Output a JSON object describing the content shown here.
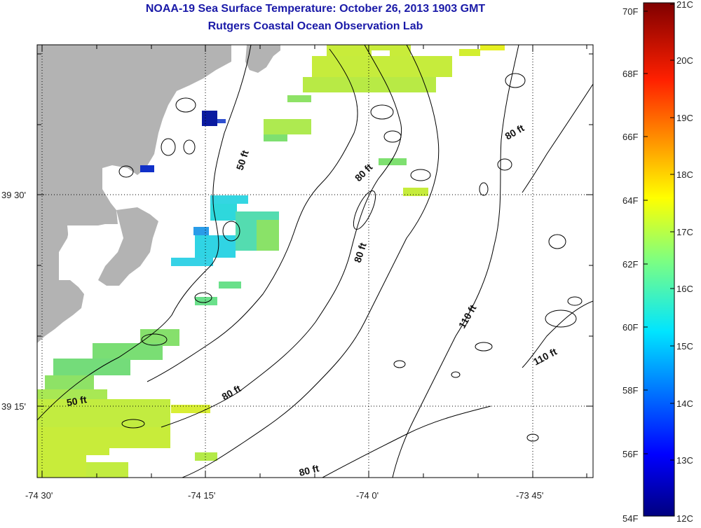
{
  "title": {
    "line1": "NOAA-19 Sea Surface Temperature:  October 26, 2013 1903 GMT",
    "line2": "Rutgers Coastal Ocean Observation Lab"
  },
  "axes": {
    "x_ticks": [
      "-74 30'",
      "-74 15'",
      "-74 0'",
      "-73 45'"
    ],
    "y_ticks": [
      "39 30'",
      "39 15'"
    ]
  },
  "contour_labels": {
    "c50_upper": "50 ft",
    "c50_lower": "50 ft",
    "c80_a": "80 ft",
    "c80_b": "80 ft",
    "c80_c": "80 ft",
    "c80_d": "80 ft",
    "c80_e": "80 ft",
    "c110_a": "110 ft",
    "c110_b": "110 ft"
  },
  "colorbar": {
    "fahrenheit": [
      "70F",
      "68F",
      "66F",
      "64F",
      "62F",
      "60F",
      "58F",
      "56F",
      "54F"
    ],
    "celsius": [
      "21C",
      "20C",
      "19C",
      "18C",
      "17C",
      "16C",
      "15C",
      "14C",
      "13C",
      "12C"
    ]
  },
  "colors": {
    "land": "#b3b3b3",
    "title": "#1a1aa8",
    "sst_17c": "#c8ec3a",
    "sst_16c": "#6fe08a",
    "sst_15c": "#33d6e0",
    "sst_13c": "#1230c8"
  }
}
